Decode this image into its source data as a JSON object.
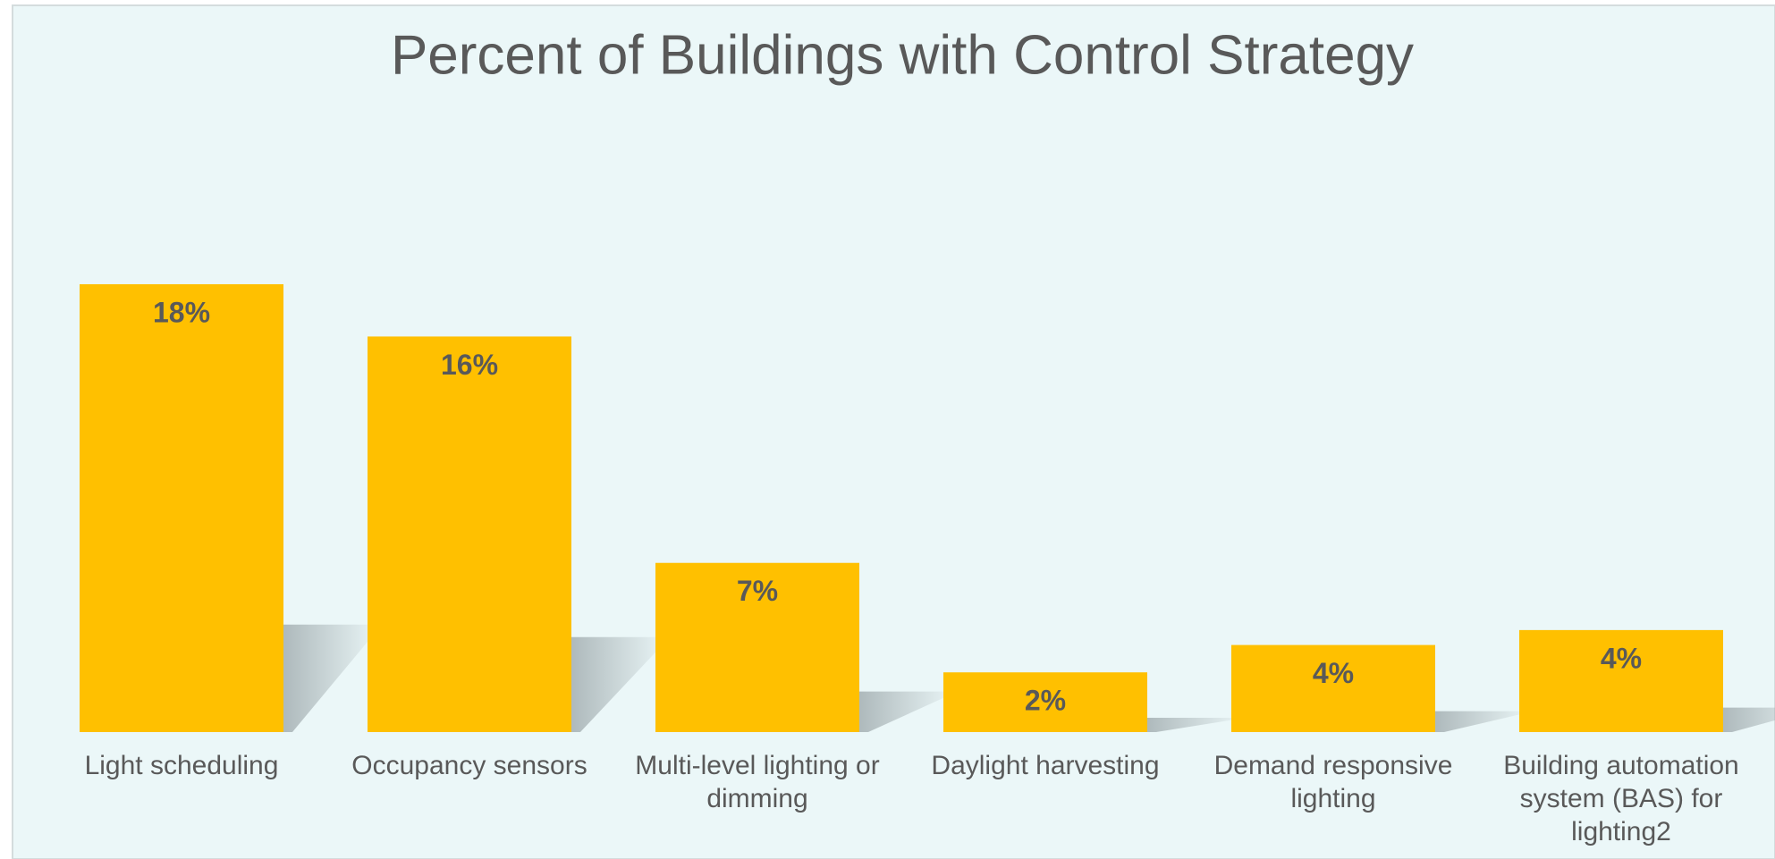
{
  "chart_data": {
    "type": "bar",
    "title": "Percent of Buildings with Control Strategy",
    "categories": [
      "Light scheduling",
      "Occupancy sensors",
      "Multi-level lighting or dimming",
      "Daylight harvesting",
      "Demand responsive lighting",
      "Building automation system (BAS) for lighting2"
    ],
    "values": [
      18,
      15.9,
      6.8,
      2.4,
      3.5,
      4.1
    ],
    "value_labels": [
      "18%",
      "16%",
      "7%",
      "2%",
      "4%",
      "4%"
    ],
    "color": "#ffc000",
    "ylim": [
      0,
      18
    ]
  }
}
